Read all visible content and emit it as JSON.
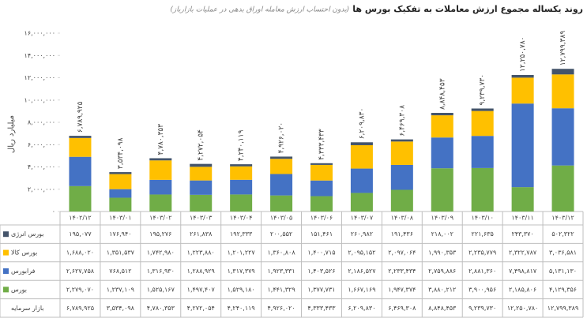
{
  "chart_data": {
    "type": "stacked_bar",
    "title": "روند یکساله مجموع ارزش معاملات به تفکیک بورس ها",
    "subtitle": "(بدون احتساب ارزش معامله اوراق بدهی در عملیات بازارباز)",
    "y_label": "میلیارد ریال",
    "categories": [
      "۱۴۰۲/۱۲",
      "۱۴۰۳/۰۱",
      "۱۴۰۳/۰۲",
      "۱۴۰۳/۰۳",
      "۱۴۰۳/۰۴",
      "۱۴۰۳/۰۵",
      "۱۴۰۳/۰۶",
      "۱۴۰۳/۰۷",
      "۱۴۰۳/۰۸",
      "۱۴۰۳/۰۹",
      "۱۴۰۳/۱۰",
      "۱۴۰۳/۱۱",
      "۱۴۰۳/۱۲"
    ],
    "ylim": [
      0,
      16000000
    ],
    "yticks": [
      {
        "value": 0,
        "label": "۰"
      },
      {
        "value": 2000000,
        "label": "۲,۰۰۰,۰۰۰"
      },
      {
        "value": 4000000,
        "label": "۴,۰۰۰,۰۰۰"
      },
      {
        "value": 6000000,
        "label": "۶,۰۰۰,۰۰۰"
      },
      {
        "value": 8000000,
        "label": "۸,۰۰۰,۰۰۰"
      },
      {
        "value": 10000000,
        "label": "۱۰,۰۰۰,۰۰۰"
      },
      {
        "value": 12000000,
        "label": "۱۲,۰۰۰,۰۰۰"
      },
      {
        "value": 14000000,
        "label": "۱۴,۰۰۰,۰۰۰"
      },
      {
        "value": 16000000,
        "label": "۱۶,۰۰۰,۰۰۰"
      }
    ],
    "series": [
      {
        "name": "بورس انرژی",
        "color": "#44546a",
        "values": [
          195077,
          176940,
          195276,
          261838,
          192333,
          200552,
          151461,
          260982,
          191436,
          218002,
          221635,
          243370,
          502322
        ],
        "value_labels": [
          "۱۹۵,۰۷۷",
          "۱۷۶,۹۴۰",
          "۱۹۵,۲۷۶",
          "۲۶۱,۸۳۸",
          "۱۹۲,۳۳۳",
          "۲۰۰,۵۵۲",
          "۱۵۱,۴۶۱",
          "۲۶۰,۹۸۲",
          "۱۹۱,۴۳۶",
          "۲۱۸,۰۰۲",
          "۲۲۱,۶۳۵",
          "۲۴۳,۳۷۰",
          "۵۰۲,۳۲۲"
        ]
      },
      {
        "name": "بورس کالا",
        "color": "#ffc000",
        "values": [
          1688020,
          1351537,
          1742980,
          1223880,
          1201227,
          1360808,
          1400715,
          2095152,
          2097064,
          1990353,
          2235779,
          2322787,
          3036581
        ],
        "value_labels": [
          "۱,۶۸۸,۰۲۰",
          "۱,۳۵۱,۵۳۷",
          "۱,۷۴۲,۹۸۰",
          "۱,۲۲۳,۸۸۰",
          "۱,۲۰۱,۲۲۷",
          "۱,۳۶۰,۸۰۸",
          "۱,۴۰۰,۷۱۵",
          "۲,۰۹۵,۱۵۲",
          "۲,۰۹۷,۰۶۴",
          "۱,۹۹۰,۳۵۳",
          "۲,۲۳۵,۷۷۹",
          "۲,۳۲۲,۷۸۷",
          "۳,۰۳۶,۵۸۱"
        ]
      },
      {
        "name": "فرابورس",
        "color": "#4472c4",
        "values": [
          2627758,
          768512,
          1316930,
          1288929,
          1317379,
          1923331,
          1403526,
          2186527,
          2233434,
          2759886,
          2881360,
          7498817,
          5131130
        ],
        "value_labels": [
          "۲,۶۲۷,۷۵۸",
          "۷۶۸,۵۱۲",
          "۱,۳۱۶,۹۳۰",
          "۱,۲۸۸,۹۲۹",
          "۱,۳۱۷,۳۷۹",
          "۱,۹۲۳,۳۳۱",
          "۱,۴۰۳,۵۲۶",
          "۲,۱۸۶,۵۲۷",
          "۲,۲۳۳,۴۳۴",
          "۲,۷۵۹,۸۸۶",
          "۲,۸۸۱,۳۶۰",
          "۷,۴۹۸,۸۱۷",
          "۵,۱۳۱,۱۳۰"
        ]
      },
      {
        "name": "بورس",
        "color": "#70ad47",
        "values": [
          2279070,
          1237109,
          1525167,
          1497407,
          1529180,
          1441329,
          1377731,
          1667169,
          1947374,
          3880212,
          3900956,
          2185806,
          4129356
        ],
        "value_labels": [
          "۲,۲۷۹,۰۷۰",
          "۱,۲۳۷,۱۰۹",
          "۱,۵۲۵,۱۶۷",
          "۱,۴۹۷,۴۰۷",
          "۱,۵۲۹,۱۸۰",
          "۱,۴۴۱,۳۲۹",
          "۱,۳۷۷,۷۳۱",
          "۱,۶۶۷,۱۶۹",
          "۱,۹۴۷,۳۷۴",
          "۳,۸۸۰,۲۱۲",
          "۳,۹۰۰,۹۵۶",
          "۲,۱۸۵,۸۰۶",
          "۴,۱۲۹,۳۵۶"
        ]
      }
    ],
    "totals": {
      "name": "بازار سرمایه",
      "values": [
        6789925,
        3534098,
        4780353,
        4272054,
        4240119,
        4926020,
        4333433,
        6209830,
        6469308,
        8848453,
        9239730,
        12250780,
        12799389
      ],
      "value_labels": [
        "۶,۷۸۹,۹۲۵",
        "۳,۵۳۴,۰۹۸",
        "۴,۷۸۰,۳۵۳",
        "۴,۲۷۲,۰۵۴",
        "۴,۲۴۰,۱۱۹",
        "۴,۹۲۶,۰۲۰",
        "۴,۳۳۳,۴۳۳",
        "۶,۲۰۹,۸۳۰",
        "۶,۴۶۹,۳۰۸",
        "۸,۸۴۸,۴۵۳",
        "۹,۲۳۹,۷۳۰",
        "۱۲,۲۵۰,۷۸۰",
        "۱۲,۷۹۹,۳۸۹"
      ]
    }
  }
}
